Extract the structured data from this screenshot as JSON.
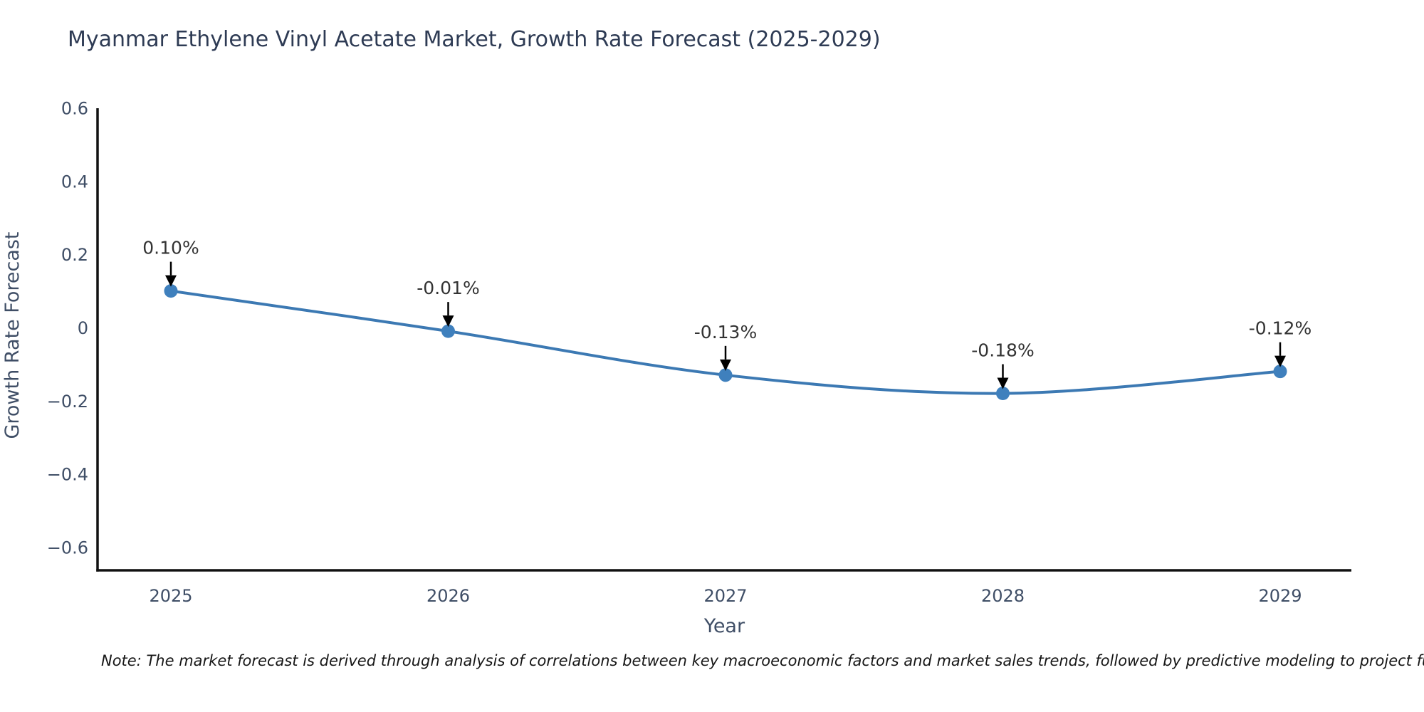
{
  "chart_data": {
    "type": "line",
    "title": "Myanmar Ethylene Vinyl Acetate Market, Growth Rate Forecast (2025-2029)",
    "xlabel": "Year",
    "ylabel": "Growth Rate Forecast",
    "categories": [
      2025,
      2026,
      2027,
      2028,
      2029
    ],
    "series": [
      {
        "name": "Growth Rate Forecast",
        "values": [
          0.1,
          -0.01,
          -0.13,
          -0.18,
          -0.12
        ]
      }
    ],
    "point_labels": [
      "0.10%",
      "-0.01%",
      "-0.13%",
      "-0.18%",
      "-0.12%"
    ],
    "yticks": [
      0.6,
      0.4,
      0.2,
      0,
      -0.2,
      -0.4,
      -0.6
    ],
    "ytick_labels": [
      "0.6",
      "0.4",
      "0.2",
      "0",
      "−0.2",
      "−0.4",
      "−0.6"
    ],
    "ylim": [
      -0.665,
      0.6
    ],
    "grid": false,
    "legend": false,
    "annotation_arrow": "down-arrow",
    "colors": {
      "line": "#3c79b3",
      "marker": "#3f80bd",
      "axis": "#111111",
      "tick_text": "#3f4e66",
      "axis_title_text": "#3f4e66",
      "title_text": "#2e3b54",
      "label_text": "#333333",
      "arrow": "#000000",
      "background": "#ffffff"
    }
  },
  "note": "Note: The market forecast is derived through analysis of correlations between key macroeconomic factors and market sales trends, followed by predictive modeling to project future sales."
}
